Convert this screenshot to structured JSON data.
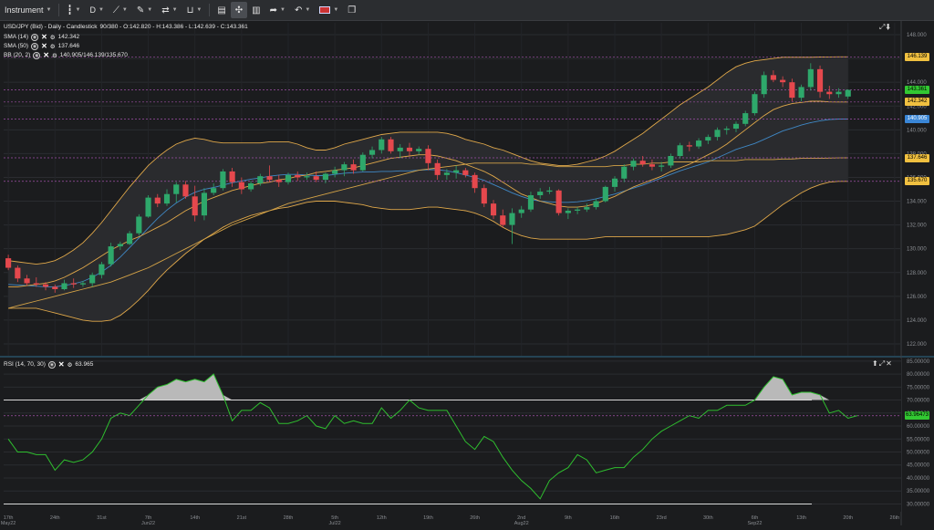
{
  "toolbar": {
    "instrument_label": "Instrument",
    "period_label": "D",
    "icons": [
      "candlestick-icon",
      "line-draw-icon",
      "brush-icon",
      "measure-icon",
      "bucket-icon",
      "layout-icon",
      "crosshair-icon",
      "bar-chart-icon",
      "share-icon",
      "undo-icon",
      "flag-uk-icon",
      "popout-icon"
    ]
  },
  "legend": {
    "main": "USD/JPY (Bid) - Daily - Candlestick",
    "main_values": "90/380 - O:142.820 - H:143.386 - L:142.639 - C:143.361",
    "sma14_label": "SMA (14)",
    "sma14_value": "142.342",
    "sma50_label": "SMA (50)",
    "sma50_value": "137.646",
    "bb_label": "BB (20, 2)",
    "bb_value": "140.905/146.139/135.670",
    "rsi_label": "RSI (14, 70, 30)",
    "rsi_value": "63.965"
  },
  "price_tags": {
    "bb_upper": "146.139",
    "close": "143.361",
    "sma14": "142.342",
    "bb_mid": "140.905",
    "sma50": "137.646",
    "bb_lower": "135.670",
    "rsi": "63.96473"
  },
  "colors": {
    "bullish": "#2ea86b",
    "bearish": "#e5484d",
    "sma14": "#e0a84a",
    "sma50": "#d4a347",
    "bb_mid": "#3f88c5",
    "rsi_line": "#2fbf2f",
    "tag_yellow": "#f0c040",
    "tag_blue": "#3a86d6",
    "tag_green": "#32c832"
  },
  "chart_data": [
    {
      "type": "candlestick",
      "ylim": [
        121,
        149
      ],
      "y_ticks": [
        122,
        124,
        126,
        128,
        130,
        132,
        134,
        136,
        138,
        140,
        142,
        144,
        146,
        148
      ],
      "y_tick_labels": [
        "122.000",
        "124.000",
        "126.000",
        "128.000",
        "130.000",
        "132.000",
        "134.000",
        "136.000",
        "138.000",
        "140.000",
        "142.000",
        "144.000",
        "146.000",
        "148.000"
      ],
      "x_labels": [
        {
          "i": 0,
          "label": "17th",
          "sub": "May22"
        },
        {
          "i": 5,
          "label": "24th",
          "sub": ""
        },
        {
          "i": 10,
          "label": "31st",
          "sub": ""
        },
        {
          "i": 15,
          "label": "7th",
          "sub": "Jun22"
        },
        {
          "i": 20,
          "label": "14th",
          "sub": ""
        },
        {
          "i": 25,
          "label": "21st",
          "sub": ""
        },
        {
          "i": 30,
          "label": "28th",
          "sub": ""
        },
        {
          "i": 35,
          "label": "5th",
          "sub": "Jul22"
        },
        {
          "i": 40,
          "label": "12th",
          "sub": ""
        },
        {
          "i": 45,
          "label": "19th",
          "sub": ""
        },
        {
          "i": 50,
          "label": "26th",
          "sub": ""
        },
        {
          "i": 55,
          "label": "2nd",
          "sub": "Aug22"
        },
        {
          "i": 60,
          "label": "9th",
          "sub": ""
        },
        {
          "i": 65,
          "label": "16th",
          "sub": ""
        },
        {
          "i": 70,
          "label": "23rd",
          "sub": ""
        },
        {
          "i": 75,
          "label": "30th",
          "sub": ""
        },
        {
          "i": 80,
          "label": "6th",
          "sub": "Sep22"
        },
        {
          "i": 85,
          "label": "13th",
          "sub": ""
        },
        {
          "i": 90,
          "label": "20th",
          "sub": ""
        },
        {
          "i": 95,
          "label": "26th",
          "sub": ""
        }
      ],
      "ohlc": [
        [
          129.2,
          129.5,
          128.2,
          128.4
        ],
        [
          128.4,
          128.6,
          127.2,
          127.5
        ],
        [
          127.5,
          127.8,
          126.9,
          127.1
        ],
        [
          127.1,
          127.6,
          126.8,
          127.0
        ],
        [
          127.0,
          127.2,
          126.5,
          126.8
        ],
        [
          126.8,
          127.0,
          126.3,
          126.6
        ],
        [
          126.6,
          127.4,
          126.5,
          127.1
        ],
        [
          127.1,
          127.5,
          126.7,
          127.0
        ],
        [
          127.0,
          127.3,
          126.8,
          127.1
        ],
        [
          127.1,
          128.0,
          126.8,
          127.8
        ],
        [
          127.8,
          128.9,
          127.5,
          128.7
        ],
        [
          128.7,
          130.5,
          128.5,
          130.2
        ],
        [
          130.2,
          130.6,
          129.9,
          130.4
        ],
        [
          130.4,
          131.5,
          130.3,
          131.3
        ],
        [
          131.3,
          132.9,
          131.1,
          132.7
        ],
        [
          132.7,
          134.5,
          132.6,
          134.3
        ],
        [
          134.3,
          134.6,
          133.5,
          133.8
        ],
        [
          133.8,
          135.0,
          133.6,
          134.6
        ],
        [
          134.6,
          135.6,
          133.9,
          135.4
        ],
        [
          135.4,
          135.7,
          134.2,
          134.4
        ],
        [
          134.4,
          135.3,
          132.3,
          132.8
        ],
        [
          132.8,
          135.1,
          132.4,
          134.7
        ],
        [
          134.7,
          135.5,
          134.5,
          135.1
        ],
        [
          135.1,
          136.7,
          134.9,
          136.5
        ],
        [
          136.5,
          136.8,
          135.2,
          135.6
        ],
        [
          135.6,
          136.0,
          134.6,
          135.0
        ],
        [
          135.0,
          135.7,
          134.8,
          135.5
        ],
        [
          135.5,
          136.3,
          135.3,
          136.1
        ],
        [
          136.1,
          137.0,
          135.6,
          135.8
        ],
        [
          135.8,
          136.2,
          135.2,
          135.6
        ],
        [
          135.6,
          136.4,
          135.4,
          136.2
        ],
        [
          136.2,
          136.5,
          135.7,
          136.0
        ],
        [
          136.0,
          136.4,
          135.8,
          136.1
        ],
        [
          136.1,
          136.5,
          135.6,
          135.8
        ],
        [
          135.8,
          136.4,
          135.5,
          136.3
        ],
        [
          136.3,
          136.9,
          136.0,
          136.6
        ],
        [
          136.6,
          137.3,
          136.1,
          137.1
        ],
        [
          137.1,
          137.5,
          136.3,
          136.6
        ],
        [
          136.6,
          138.1,
          136.5,
          137.9
        ],
        [
          137.9,
          138.6,
          137.6,
          138.3
        ],
        [
          138.3,
          139.4,
          138.0,
          139.2
        ],
        [
          139.2,
          139.4,
          138.0,
          138.2
        ],
        [
          138.2,
          138.8,
          137.6,
          138.5
        ],
        [
          138.5,
          138.9,
          137.8,
          138.2
        ],
        [
          138.2,
          138.6,
          137.9,
          138.4
        ],
        [
          138.4,
          138.7,
          136.6,
          137.2
        ],
        [
          137.2,
          137.5,
          135.8,
          136.2
        ],
        [
          136.2,
          136.7,
          135.8,
          136.4
        ],
        [
          136.4,
          137.0,
          135.9,
          136.6
        ],
        [
          136.6,
          136.8,
          136.0,
          136.2
        ],
        [
          136.2,
          136.4,
          134.7,
          135.1
        ],
        [
          135.1,
          135.4,
          133.5,
          133.8
        ],
        [
          133.8,
          134.1,
          132.5,
          132.8
        ],
        [
          132.8,
          133.3,
          131.8,
          132.0
        ],
        [
          132.0,
          133.4,
          130.4,
          133.0
        ],
        [
          133.0,
          133.6,
          132.6,
          133.3
        ],
        [
          133.3,
          134.8,
          133.1,
          134.5
        ],
        [
          134.5,
          135.1,
          134.2,
          134.8
        ],
        [
          134.8,
          135.2,
          134.6,
          134.9
        ],
        [
          134.9,
          135.0,
          132.8,
          133.0
        ],
        [
          133.0,
          133.4,
          132.5,
          133.2
        ],
        [
          133.2,
          133.5,
          132.9,
          133.3
        ],
        [
          133.3,
          133.8,
          133.1,
          133.5
        ],
        [
          133.5,
          134.2,
          133.3,
          134.0
        ],
        [
          134.0,
          135.3,
          133.9,
          135.2
        ],
        [
          135.2,
          136.1,
          134.8,
          135.9
        ],
        [
          135.9,
          137.1,
          135.6,
          136.9
        ],
        [
          136.9,
          137.6,
          136.6,
          137.4
        ],
        [
          137.4,
          137.8,
          136.9,
          137.1
        ],
        [
          137.1,
          137.5,
          136.6,
          136.9
        ],
        [
          136.9,
          137.3,
          136.5,
          137.0
        ],
        [
          137.0,
          138.0,
          136.8,
          137.8
        ],
        [
          137.8,
          138.9,
          137.6,
          138.7
        ],
        [
          138.7,
          139.0,
          138.2,
          138.6
        ],
        [
          138.6,
          139.3,
          138.4,
          139.1
        ],
        [
          139.1,
          139.6,
          138.8,
          139.4
        ],
        [
          139.4,
          140.2,
          139.1,
          140.0
        ],
        [
          140.0,
          140.3,
          139.6,
          140.1
        ],
        [
          140.1,
          140.7,
          139.8,
          140.5
        ],
        [
          140.5,
          141.6,
          140.3,
          141.4
        ],
        [
          141.4,
          143.2,
          141.2,
          143.0
        ],
        [
          143.0,
          144.9,
          142.7,
          144.6
        ],
        [
          144.6,
          145.0,
          144.0,
          144.2
        ],
        [
          144.2,
          144.5,
          143.6,
          144.0
        ],
        [
          144.0,
          144.3,
          142.4,
          142.7
        ],
        [
          142.7,
          143.8,
          142.4,
          143.6
        ],
        [
          143.6,
          145.6,
          143.3,
          145.1
        ],
        [
          145.1,
          145.4,
          142.7,
          143.2
        ],
        [
          143.2,
          143.7,
          142.6,
          143.0
        ],
        [
          143.0,
          143.5,
          142.7,
          143.2
        ],
        [
          142.8,
          143.4,
          142.6,
          143.36
        ]
      ],
      "sma14": [
        126.8,
        126.8,
        126.9,
        127.0,
        127.1,
        127.3,
        127.6,
        128.0,
        128.4,
        128.9,
        129.4,
        129.9,
        130.3,
        130.7,
        131.0,
        131.4,
        131.8,
        132.2,
        132.7,
        133.2,
        133.6,
        134.0,
        134.3,
        134.6,
        134.9,
        135.1,
        135.3,
        135.5,
        135.6,
        135.8,
        135.9,
        136.1,
        136.2,
        136.4,
        136.5,
        136.6,
        136.7,
        136.8,
        137.0,
        137.2,
        137.4,
        137.6,
        137.7,
        137.8,
        137.9,
        137.9,
        137.8,
        137.6,
        137.4,
        137.1,
        136.8,
        136.5,
        136.1,
        135.6,
        135.1,
        134.6,
        134.3,
        134.0,
        133.8,
        133.6,
        133.5,
        133.5,
        133.6,
        133.8,
        134.1,
        134.4,
        134.8,
        135.2,
        135.5,
        135.8,
        136.1,
        136.5,
        136.8,
        137.1,
        137.5,
        137.9,
        138.3,
        138.8,
        139.4,
        140.0,
        140.6,
        141.2,
        141.7,
        142.0,
        142.2,
        142.3,
        142.4,
        142.4,
        142.35,
        142.34,
        142.342
      ],
      "sma50": [
        125.0,
        125.2,
        125.4,
        125.6,
        125.8,
        126.0,
        126.2,
        126.4,
        126.6,
        126.8,
        127.0,
        127.2,
        127.5,
        127.8,
        128.1,
        128.4,
        128.8,
        129.2,
        129.6,
        130.0,
        130.4,
        130.8,
        131.2,
        131.6,
        132.0,
        132.3,
        132.6,
        132.9,
        133.2,
        133.5,
        133.8,
        134.0,
        134.2,
        134.4,
        134.6,
        134.8,
        135.0,
        135.2,
        135.4,
        135.6,
        135.8,
        136.0,
        136.2,
        136.4,
        136.6,
        136.7,
        136.8,
        136.9,
        137.0,
        137.1,
        137.2,
        137.2,
        137.2,
        137.2,
        137.2,
        137.2,
        137.1,
        137.1,
        137.0,
        136.9,
        136.9,
        136.9,
        136.9,
        136.9,
        136.9,
        137.0,
        137.0,
        137.1,
        137.1,
        137.2,
        137.2,
        137.3,
        137.3,
        137.3,
        137.3,
        137.4,
        137.4,
        137.4,
        137.4,
        137.5,
        137.5,
        137.5,
        137.5,
        137.55,
        137.55,
        137.6,
        137.6,
        137.6,
        137.62,
        137.64,
        137.646
      ],
      "bb_upper": [
        129.0,
        128.9,
        128.8,
        128.7,
        128.8,
        129.0,
        129.4,
        129.9,
        130.5,
        131.3,
        132.2,
        133.2,
        134.2,
        135.2,
        136.1,
        137.0,
        137.7,
        138.3,
        138.8,
        139.1,
        139.3,
        139.2,
        139.0,
        138.9,
        138.9,
        138.9,
        138.9,
        138.9,
        139.0,
        139.0,
        139.0,
        138.8,
        138.5,
        138.3,
        138.3,
        138.5,
        138.8,
        139.0,
        139.2,
        139.4,
        139.6,
        139.7,
        139.8,
        139.8,
        139.8,
        139.8,
        139.8,
        139.7,
        139.5,
        139.2,
        139.0,
        138.8,
        138.5,
        138.3,
        138.0,
        137.7,
        137.4,
        137.2,
        137.1,
        137.0,
        137.0,
        137.1,
        137.3,
        137.5,
        137.8,
        138.2,
        138.7,
        139.2,
        139.7,
        140.3,
        140.9,
        141.5,
        142.1,
        142.6,
        143.1,
        143.6,
        144.2,
        144.8,
        145.3,
        145.6,
        145.8,
        145.9,
        146.0,
        146.1,
        146.1,
        146.1,
        146.1,
        146.12,
        146.13,
        146.139,
        146.139
      ],
      "bb_lower": [
        125.0,
        125.0,
        125.0,
        125.0,
        124.8,
        124.6,
        124.4,
        124.2,
        124.0,
        123.9,
        123.9,
        124.0,
        124.4,
        125.0,
        125.7,
        126.5,
        127.4,
        128.2,
        128.9,
        129.6,
        130.2,
        130.8,
        131.3,
        131.8,
        132.2,
        132.5,
        132.8,
        133.0,
        133.2,
        133.4,
        133.5,
        133.7,
        133.9,
        134.0,
        134.0,
        134.0,
        133.9,
        133.8,
        133.7,
        133.5,
        133.4,
        133.3,
        133.3,
        133.3,
        133.4,
        133.5,
        133.5,
        133.4,
        133.3,
        133.2,
        133.0,
        132.7,
        132.3,
        131.8,
        131.4,
        131.1,
        130.9,
        130.8,
        130.8,
        130.8,
        130.8,
        130.8,
        130.8,
        130.9,
        131.0,
        131.0,
        131.0,
        131.0,
        131.0,
        131.0,
        131.0,
        131.0,
        131.0,
        131.0,
        131.0,
        131.0,
        131.1,
        131.2,
        131.4,
        131.6,
        131.9,
        132.5,
        133.1,
        133.7,
        134.2,
        134.7,
        135.1,
        135.4,
        135.6,
        135.67,
        135.67
      ]
    },
    {
      "type": "line",
      "name": "RSI",
      "ylim": [
        27,
        86
      ],
      "y_ticks": [
        30,
        35,
        40,
        45,
        50,
        55,
        60,
        65,
        70,
        75,
        80,
        85
      ],
      "y_tick_labels": [
        "30.00000",
        "35.00000",
        "40.00000",
        "45.00000",
        "50.00000",
        "55.00000",
        "60.00000",
        "65.00000",
        "70.00000",
        "75.00000",
        "80.00000",
        "85.00000"
      ],
      "overbought": 70,
      "oversold": 30,
      "values": [
        55,
        50,
        50,
        49,
        49,
        43,
        47,
        46,
        47,
        50,
        55,
        63,
        65,
        64,
        68,
        72,
        75,
        76,
        78,
        77,
        78,
        77,
        80,
        72,
        62,
        66,
        66,
        69,
        67,
        61,
        61,
        62,
        64,
        60,
        59,
        64,
        61,
        62,
        61,
        61,
        67,
        63,
        66,
        70,
        67,
        66,
        66,
        66,
        60,
        54,
        51,
        56,
        54,
        48,
        43,
        39,
        36,
        32,
        39,
        42,
        44,
        49,
        47,
        42,
        43,
        44,
        44,
        48,
        51,
        55,
        58,
        60,
        62,
        64,
        63,
        66,
        66,
        68,
        68,
        68,
        70,
        75,
        79,
        78,
        72,
        73,
        73,
        72,
        65,
        66,
        63,
        64
      ]
    }
  ]
}
